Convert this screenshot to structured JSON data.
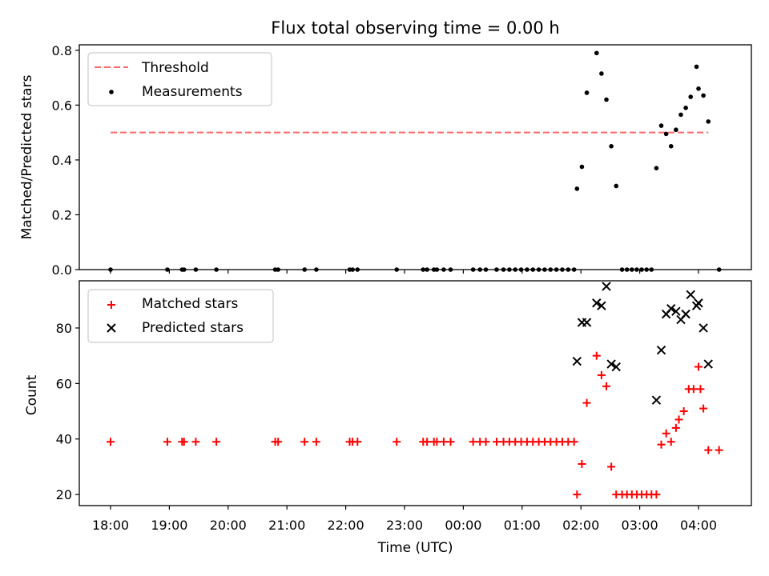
{
  "chart_data": [
    {
      "type": "scatter",
      "title": "Flux total observing time = 0.00 h",
      "xlabel": "",
      "ylabel": "Matched/Predicted stars",
      "ylim": [
        0,
        0.82
      ],
      "yticks": [
        "0.0",
        "0.2",
        "0.4",
        "0.6",
        "0.8"
      ],
      "legend": {
        "placement": "upper left",
        "entries": [
          "Threshold",
          "Measurements"
        ]
      },
      "threshold": {
        "name": "Threshold",
        "value": 0.5,
        "x_from": "18:00",
        "x_to": "04:10",
        "style": "dashed",
        "color": "#ff6a6a"
      },
      "series": [
        {
          "name": "Measurements",
          "color": "#000000",
          "points": [
            [
              "18:00",
              0
            ],
            [
              "18:58",
              0
            ],
            [
              "19:13",
              0
            ],
            [
              "19:15",
              0
            ],
            [
              "19:27",
              0
            ],
            [
              "19:48",
              0
            ],
            [
              "20:48",
              0
            ],
            [
              "20:51",
              0
            ],
            [
              "21:18",
              0
            ],
            [
              "21:30",
              0
            ],
            [
              "22:04",
              0
            ],
            [
              "22:07",
              0
            ],
            [
              "22:12",
              0
            ],
            [
              "22:52",
              0
            ],
            [
              "23:19",
              0
            ],
            [
              "23:23",
              0
            ],
            [
              "23:30",
              0
            ],
            [
              "23:33",
              0
            ],
            [
              "23:40",
              0
            ],
            [
              "23:47",
              0
            ],
            [
              "00:10",
              0
            ],
            [
              "00:17",
              0
            ],
            [
              "00:23",
              0
            ],
            [
              "00:34",
              0
            ],
            [
              "00:41",
              0
            ],
            [
              "00:47",
              0
            ],
            [
              "00:53",
              0
            ],
            [
              "00:59",
              0
            ],
            [
              "01:05",
              0
            ],
            [
              "01:11",
              0
            ],
            [
              "01:17",
              0
            ],
            [
              "01:23",
              0
            ],
            [
              "01:29",
              0
            ],
            [
              "01:35",
              0
            ],
            [
              "01:41",
              0
            ],
            [
              "01:47",
              0
            ],
            [
              "01:53",
              0
            ],
            [
              "01:56",
              0.295
            ],
            [
              "02:01",
              0.375
            ],
            [
              "02:06",
              0.645
            ],
            [
              "02:16",
              0.79
            ],
            [
              "02:21",
              0.715
            ],
            [
              "02:26",
              0.62
            ],
            [
              "02:31",
              0.45
            ],
            [
              "02:36",
              0.305
            ],
            [
              "02:42",
              0
            ],
            [
              "02:47",
              0
            ],
            [
              "02:52",
              0
            ],
            [
              "02:57",
              0
            ],
            [
              "03:02",
              0
            ],
            [
              "03:07",
              0
            ],
            [
              "03:12",
              0
            ],
            [
              "03:17",
              0.37
            ],
            [
              "03:22",
              0.525
            ],
            [
              "03:27",
              0.495
            ],
            [
              "03:32",
              0.45
            ],
            [
              "03:37",
              0.51
            ],
            [
              "03:42",
              0.565
            ],
            [
              "03:47",
              0.59
            ],
            [
              "03:52",
              0.63
            ],
            [
              "03:58",
              0.74
            ],
            [
              "04:00",
              0.66
            ],
            [
              "04:05",
              0.635
            ],
            [
              "04:10",
              0.54
            ],
            [
              "04:21",
              0
            ]
          ]
        }
      ]
    },
    {
      "type": "scatter",
      "title": "",
      "xlabel": "Time (UTC)",
      "ylabel": "Count",
      "ylim": [
        16,
        97
      ],
      "yticks": [
        "20",
        "40",
        "60",
        "80"
      ],
      "xticks": [
        "18:00",
        "19:00",
        "20:00",
        "21:00",
        "22:00",
        "23:00",
        "00:00",
        "01:00",
        "02:00",
        "03:00",
        "04:00"
      ],
      "legend": {
        "placement": "upper left",
        "entries": [
          "Matched stars",
          "Predicted stars"
        ]
      },
      "series": [
        {
          "name": "Matched stars",
          "marker": "plus",
          "color": "#ff0000",
          "points": [
            [
              "18:00",
              39
            ],
            [
              "18:58",
              39
            ],
            [
              "19:13",
              39
            ],
            [
              "19:15",
              39
            ],
            [
              "19:27",
              39
            ],
            [
              "19:48",
              39
            ],
            [
              "20:48",
              39
            ],
            [
              "20:51",
              39
            ],
            [
              "21:18",
              39
            ],
            [
              "21:30",
              39
            ],
            [
              "22:04",
              39
            ],
            [
              "22:07",
              39
            ],
            [
              "22:12",
              39
            ],
            [
              "22:52",
              39
            ],
            [
              "23:19",
              39
            ],
            [
              "23:23",
              39
            ],
            [
              "23:30",
              39
            ],
            [
              "23:33",
              39
            ],
            [
              "23:40",
              39
            ],
            [
              "23:47",
              39
            ],
            [
              "00:10",
              39
            ],
            [
              "00:17",
              39
            ],
            [
              "00:23",
              39
            ],
            [
              "00:34",
              39
            ],
            [
              "00:41",
              39
            ],
            [
              "00:47",
              39
            ],
            [
              "00:53",
              39
            ],
            [
              "00:59",
              39
            ],
            [
              "01:05",
              39
            ],
            [
              "01:11",
              39
            ],
            [
              "01:17",
              39
            ],
            [
              "01:23",
              39
            ],
            [
              "01:29",
              39
            ],
            [
              "01:35",
              39
            ],
            [
              "01:41",
              39
            ],
            [
              "01:47",
              39
            ],
            [
              "01:53",
              39
            ],
            [
              "01:56",
              20
            ],
            [
              "02:01",
              31
            ],
            [
              "02:06",
              53
            ],
            [
              "02:16",
              70
            ],
            [
              "02:21",
              63
            ],
            [
              "02:26",
              59
            ],
            [
              "02:31",
              30
            ],
            [
              "02:36",
              20
            ],
            [
              "02:42",
              20
            ],
            [
              "02:47",
              20
            ],
            [
              "02:52",
              20
            ],
            [
              "02:57",
              20
            ],
            [
              "03:02",
              20
            ],
            [
              "03:07",
              20
            ],
            [
              "03:12",
              20
            ],
            [
              "03:17",
              20
            ],
            [
              "03:22",
              38
            ],
            [
              "03:27",
              42
            ],
            [
              "03:32",
              39
            ],
            [
              "03:37",
              44
            ],
            [
              "03:40",
              47
            ],
            [
              "03:45",
              50
            ],
            [
              "03:50",
              58
            ],
            [
              "03:55",
              58
            ],
            [
              "04:00",
              66
            ],
            [
              "04:02",
              58
            ],
            [
              "04:05",
              51
            ],
            [
              "04:10",
              36
            ],
            [
              "04:21",
              36
            ]
          ]
        },
        {
          "name": "Predicted stars",
          "marker": "x",
          "color": "#000000",
          "points": [
            [
              "01:56",
              68
            ],
            [
              "02:01",
              82
            ],
            [
              "02:06",
              82
            ],
            [
              "02:16",
              89
            ],
            [
              "02:21",
              88
            ],
            [
              "02:26",
              95
            ],
            [
              "02:31",
              67
            ],
            [
              "02:36",
              66
            ],
            [
              "03:17",
              54
            ],
            [
              "03:22",
              72
            ],
            [
              "03:27",
              85
            ],
            [
              "03:32",
              87
            ],
            [
              "03:37",
              86
            ],
            [
              "03:42",
              83
            ],
            [
              "03:47",
              85
            ],
            [
              "03:52",
              92
            ],
            [
              "03:58",
              88
            ],
            [
              "04:00",
              89
            ],
            [
              "04:05",
              80
            ],
            [
              "04:10",
              67
            ]
          ]
        }
      ]
    }
  ],
  "colors": {
    "threshold": "#ff6a6a",
    "measurements": "#000000",
    "matched": "#ff0000",
    "predicted": "#000000",
    "legend_border": "#cccccc"
  }
}
